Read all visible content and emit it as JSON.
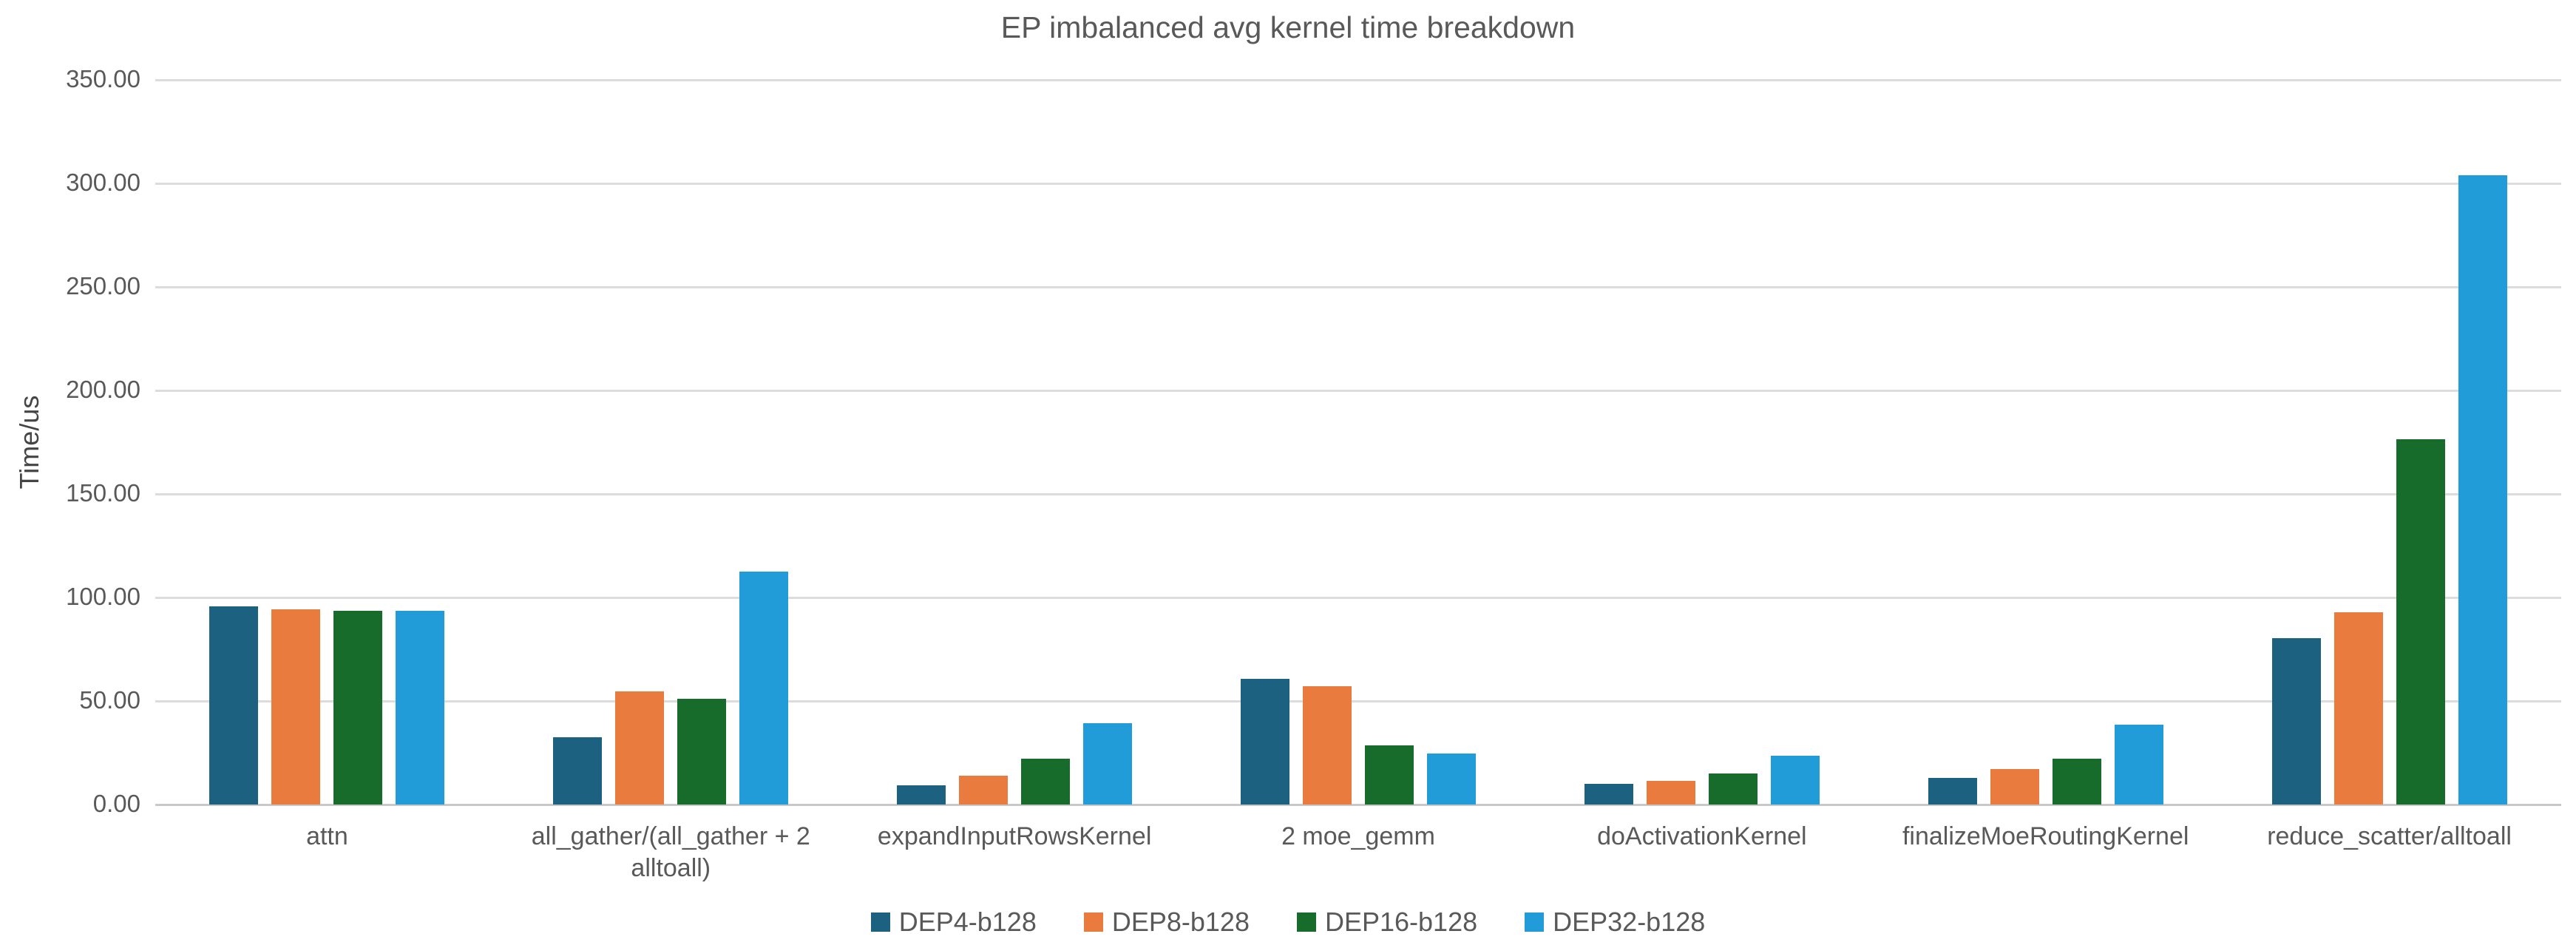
{
  "title": "EP imbalanced avg kernel time breakdown",
  "y_axis": {
    "label": "Time/us",
    "tick_labels": [
      "0.00",
      "50.00",
      "100.00",
      "150.00",
      "200.00",
      "250.00",
      "300.00",
      "350.00"
    ]
  },
  "colors": {
    "dep4": "#1D6180",
    "dep8": "#E87B3D",
    "dep16": "#176B2B",
    "dep32": "#229CD9",
    "gridline": "#dcdcdc",
    "text": "#595959"
  },
  "chart_data": {
    "type": "bar",
    "title": "EP imbalanced avg kernel time breakdown",
    "xlabel": "",
    "ylabel": "Time/us",
    "ylim": [
      0,
      350
    ],
    "y_step": 50,
    "grid": true,
    "legend_position": "bottom",
    "categories": [
      "attn",
      "all_gather/(all_gather + 2 alltoall)",
      "expandInputRowsKernel",
      "2 moe_gemm",
      "doActivationKernel",
      "finalizeMoeRoutingKernel",
      "reduce_scatter/alltoall"
    ],
    "series": [
      {
        "name": "DEP4-b128",
        "color": "#1D6180",
        "values": [
          95.7,
          32.4,
          9.4,
          60.7,
          10.0,
          12.9,
          80.5
        ]
      },
      {
        "name": "DEP8-b128",
        "color": "#E87B3D",
        "values": [
          94.3,
          54.5,
          13.9,
          57.1,
          11.4,
          17.3,
          93.0
        ]
      },
      {
        "name": "DEP16-b128",
        "color": "#176B2B",
        "values": [
          93.4,
          51.0,
          22.3,
          28.7,
          15.0,
          22.1,
          176.5
        ]
      },
      {
        "name": "DEP32-b128",
        "color": "#229CD9",
        "values": [
          93.6,
          112.5,
          39.3,
          24.6,
          23.6,
          38.6,
          304.0
        ]
      }
    ]
  }
}
